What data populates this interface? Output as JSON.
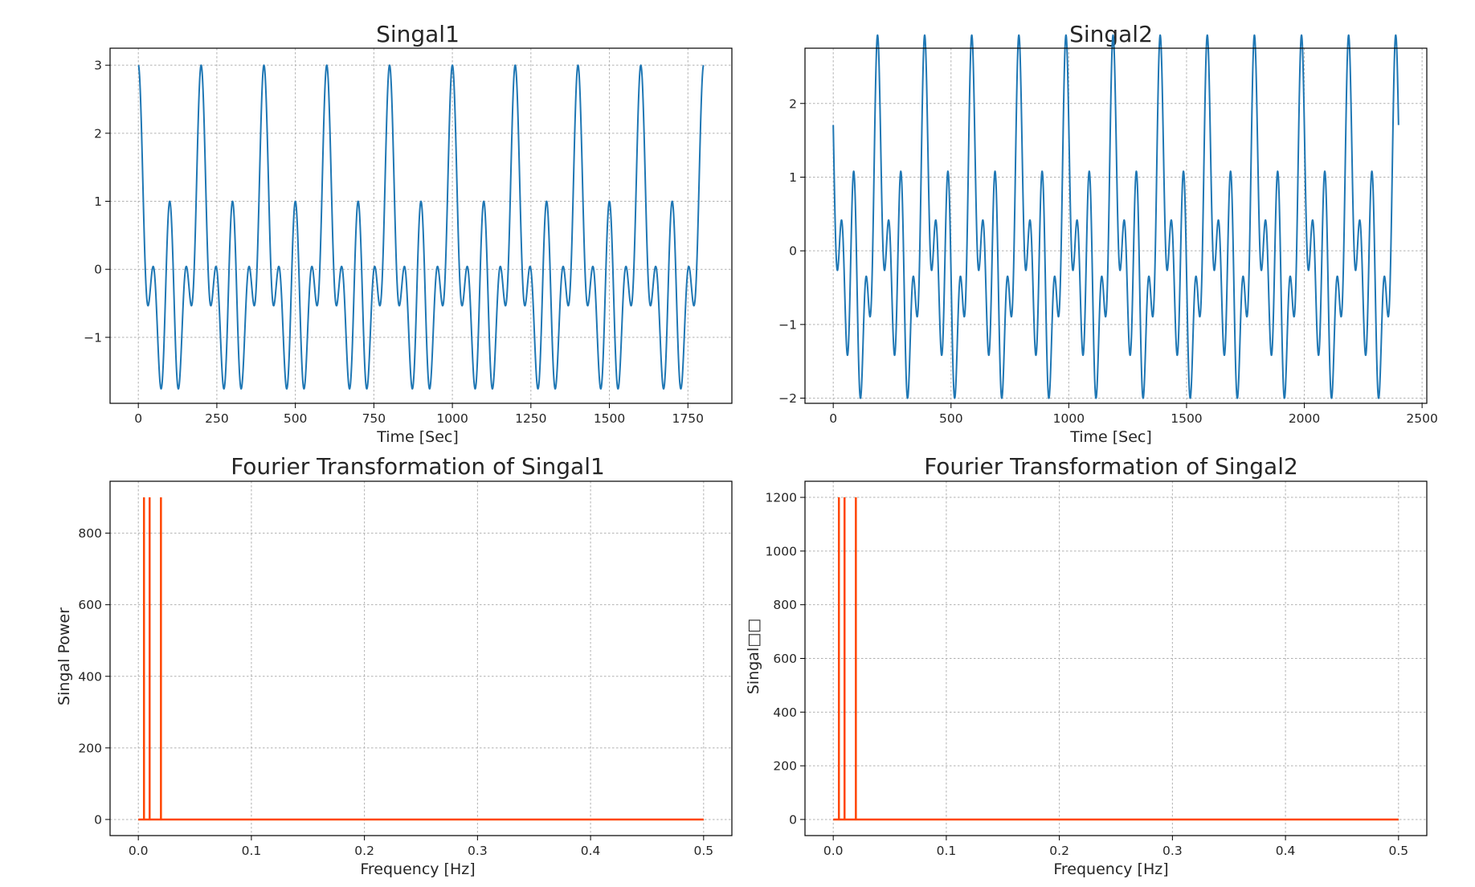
{
  "figure": {
    "background": "#ffffff"
  },
  "chart_data": [
    {
      "type": "line",
      "title": "Singal1",
      "xlabel": "Time [Sec]",
      "ylabel": "",
      "xlim": [
        -90,
        1890
      ],
      "ylim": [
        -1.97,
        3.25
      ],
      "xticks": [
        0,
        250,
        500,
        750,
        1000,
        1250,
        1500,
        1750
      ],
      "xtick_labels": [
        "0",
        "250",
        "500",
        "750",
        "1000",
        "1250",
        "1500",
        "1750"
      ],
      "yticks": [
        -1,
        0,
        1,
        2,
        3
      ],
      "ytick_labels": [
        "−1",
        "0",
        "1",
        "2",
        "3"
      ],
      "grid": true,
      "color": "#1f77b4",
      "series": [
        {
          "x_range": [
            0,
            1800
          ],
          "generator": "sum_of_cosines",
          "components": [
            {
              "amplitude": 1,
              "period": 200
            },
            {
              "amplitude": 1,
              "period": 100
            },
            {
              "amplitude": 1,
              "period": 50
            }
          ]
        }
      ]
    },
    {
      "type": "line",
      "title": "Singal2",
      "xlabel": "Time [Sec]",
      "ylabel": "",
      "xlim": [
        -120,
        2520
      ],
      "ylim": [
        -2.07,
        2.75
      ],
      "xticks": [
        0,
        500,
        1000,
        1500,
        2000,
        2500
      ],
      "xtick_labels": [
        "0",
        "500",
        "1000",
        "1500",
        "2000",
        "2500"
      ],
      "yticks": [
        -2,
        -1,
        0,
        1,
        2
      ],
      "ytick_labels": [
        "−2",
        "−1",
        "0",
        "1",
        "2"
      ],
      "grid": true,
      "color": "#1f77b4",
      "series": [
        {
          "x_range": [
            0,
            2400
          ],
          "generator": "sum_of_cosines",
          "components": [
            {
              "amplitude": 1,
              "period": 200,
              "phase_deg": 0
            },
            {
              "amplitude": 1,
              "period": 100,
              "phase_deg": 45
            },
            {
              "amplitude": 1,
              "period": 50,
              "phase_deg": 90
            }
          ]
        }
      ]
    },
    {
      "type": "line",
      "title": "Fourier Transformation of Singal1",
      "xlabel": "Frequency [Hz]",
      "ylabel": "Singal Power",
      "xlim": [
        -0.025,
        0.525
      ],
      "ylim": [
        -45,
        945
      ],
      "xticks": [
        0.0,
        0.1,
        0.2,
        0.3,
        0.4,
        0.5
      ],
      "xtick_labels": [
        "0.0",
        "0.1",
        "0.2",
        "0.3",
        "0.4",
        "0.5"
      ],
      "yticks": [
        0,
        200,
        400,
        600,
        800
      ],
      "ytick_labels": [
        "0",
        "200",
        "400",
        "600",
        "800"
      ],
      "grid": true,
      "color": "#ff4500",
      "series": [
        {
          "baseline_x_range": [
            0,
            0.5
          ],
          "peaks": [
            {
              "x": 0.005,
              "y": 900
            },
            {
              "x": 0.01,
              "y": 900
            },
            {
              "x": 0.02,
              "y": 900
            }
          ]
        }
      ]
    },
    {
      "type": "line",
      "title": "Fourier Transformation of Singal2",
      "xlabel": "Frequency [Hz]",
      "ylabel": "Singal□□",
      "xlim": [
        -0.025,
        0.525
      ],
      "ylim": [
        -60,
        1260
      ],
      "xticks": [
        0.0,
        0.1,
        0.2,
        0.3,
        0.4,
        0.5
      ],
      "xtick_labels": [
        "0.0",
        "0.1",
        "0.2",
        "0.3",
        "0.4",
        "0.5"
      ],
      "yticks": [
        0,
        200,
        400,
        600,
        800,
        1000,
        1200
      ],
      "ytick_labels": [
        "0",
        "200",
        "400",
        "600",
        "800",
        "1000",
        "1200"
      ],
      "grid": true,
      "color": "#ff4500",
      "series": [
        {
          "baseline_x_range": [
            0,
            0.5
          ],
          "peaks": [
            {
              "x": 0.005,
              "y": 1200
            },
            {
              "x": 0.01,
              "y": 1200
            },
            {
              "x": 0.02,
              "y": 1200
            }
          ]
        }
      ]
    }
  ]
}
